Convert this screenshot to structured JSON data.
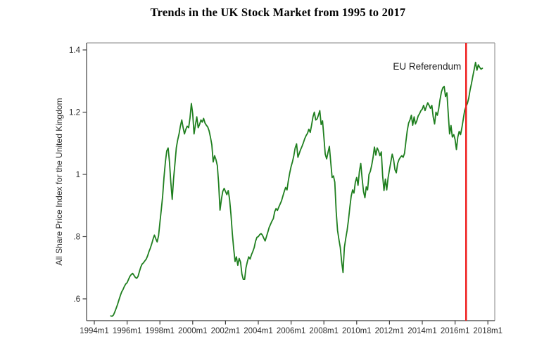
{
  "chart_data": {
    "type": "line",
    "title": "Trends in the UK Stock Market from 1995 to 2017",
    "ylabel": "All Share Price Index for the United Kingdom",
    "xlabel": "",
    "grid": false,
    "legend": "none",
    "xlim": [
      1993.5,
      2018.4
    ],
    "ylim": [
      0.53,
      1.42
    ],
    "x_ticks": [
      {
        "value": 1994,
        "label": "1994m1"
      },
      {
        "value": 1996,
        "label": "1996m1"
      },
      {
        "value": 1998,
        "label": "1998m1"
      },
      {
        "value": 2000,
        "label": "2000m1"
      },
      {
        "value": 2002,
        "label": "2002m1"
      },
      {
        "value": 2004,
        "label": "2004m1"
      },
      {
        "value": 2006,
        "label": "2006m1"
      },
      {
        "value": 2008,
        "label": "2008m1"
      },
      {
        "value": 2010,
        "label": "2010m1"
      },
      {
        "value": 2012,
        "label": "2012m1"
      },
      {
        "value": 2014,
        "label": "2014m1"
      },
      {
        "value": 2016,
        "label": "2016m1"
      },
      {
        "value": 2018,
        "label": "2018m1"
      }
    ],
    "y_ticks": [
      {
        "value": 0.6,
        "label": ".6"
      },
      {
        "value": 0.8,
        "label": ".8"
      },
      {
        "value": 1.0,
        "label": "1"
      },
      {
        "value": 1.2,
        "label": "1.2"
      },
      {
        "value": 1.4,
        "label": "1.4"
      }
    ],
    "series": [
      {
        "name": "All Share Price Index for the United Kingdom",
        "color": "#1f7f1f",
        "frequency": "monthly",
        "start": "1995m1",
        "end": "2017m9",
        "start_year": 1995,
        "start_month": 1,
        "values": [
          0.545,
          0.544,
          0.548,
          0.558,
          0.57,
          0.582,
          0.596,
          0.61,
          0.622,
          0.63,
          0.64,
          0.648,
          0.652,
          0.662,
          0.672,
          0.678,
          0.682,
          0.676,
          0.669,
          0.666,
          0.672,
          0.688,
          0.702,
          0.712,
          0.716,
          0.722,
          0.728,
          0.738,
          0.752,
          0.763,
          0.777,
          0.792,
          0.805,
          0.793,
          0.783,
          0.803,
          0.845,
          0.885,
          0.93,
          0.99,
          1.04,
          1.075,
          1.085,
          1.04,
          0.975,
          0.92,
          0.985,
          1.035,
          1.085,
          1.11,
          1.13,
          1.155,
          1.175,
          1.15,
          1.13,
          1.145,
          1.155,
          1.15,
          1.18,
          1.228,
          1.195,
          1.13,
          1.16,
          1.185,
          1.15,
          1.16,
          1.175,
          1.168,
          1.18,
          1.165,
          1.158,
          1.152,
          1.14,
          1.12,
          1.095,
          1.04,
          1.06,
          1.048,
          1.028,
          0.97,
          0.885,
          0.92,
          0.945,
          0.955,
          0.945,
          0.935,
          0.948,
          0.92,
          0.87,
          0.81,
          0.76,
          0.72,
          0.735,
          0.708,
          0.73,
          0.718,
          0.68,
          0.663,
          0.663,
          0.7,
          0.72,
          0.735,
          0.728,
          0.742,
          0.752,
          0.765,
          0.785,
          0.798,
          0.8,
          0.806,
          0.81,
          0.805,
          0.795,
          0.786,
          0.8,
          0.815,
          0.83,
          0.84,
          0.85,
          0.858,
          0.88,
          0.89,
          0.884,
          0.895,
          0.905,
          0.915,
          0.93,
          0.945,
          0.958,
          0.95,
          0.98,
          1.005,
          1.025,
          1.04,
          1.06,
          1.085,
          1.098,
          1.055,
          1.068,
          1.08,
          1.09,
          1.102,
          1.115,
          1.125,
          1.132,
          1.145,
          1.135,
          1.158,
          1.185,
          1.2,
          1.175,
          1.178,
          1.19,
          1.205,
          1.16,
          1.172,
          1.12,
          1.065,
          1.05,
          1.07,
          1.09,
          1.04,
          0.99,
          0.995,
          0.975,
          0.88,
          0.82,
          0.79,
          0.765,
          0.72,
          0.685,
          0.765,
          0.795,
          0.82,
          0.855,
          0.895,
          0.93,
          0.95,
          0.94,
          0.975,
          0.99,
          0.965,
          1.01,
          1.035,
          0.985,
          0.945,
          0.925,
          0.96,
          0.95,
          1.0,
          1.01,
          1.03,
          1.055,
          1.088,
          1.062,
          1.085,
          1.075,
          1.06,
          1.072,
          0.995,
          0.948,
          0.985,
          0.95,
          0.99,
          1.015,
          1.04,
          1.065,
          1.048,
          1.015,
          1.005,
          1.035,
          1.048,
          1.055,
          1.06,
          1.055,
          1.068,
          1.105,
          1.14,
          1.165,
          1.175,
          1.19,
          1.158,
          1.185,
          1.162,
          1.172,
          1.188,
          1.195,
          1.205,
          1.21,
          1.222,
          1.205,
          1.218,
          1.23,
          1.222,
          1.212,
          1.222,
          1.185,
          1.162,
          1.2,
          1.19,
          1.21,
          1.24,
          1.265,
          1.278,
          1.283,
          1.25,
          1.262,
          1.195,
          1.13,
          1.157,
          1.12,
          1.128,
          1.112,
          1.08,
          1.12,
          1.138,
          1.128,
          1.15,
          1.178,
          1.205,
          1.218,
          1.228,
          1.245,
          1.272,
          1.292,
          1.315,
          1.338,
          1.36,
          1.335,
          1.352,
          1.344,
          1.338,
          1.341
        ]
      }
    ],
    "annotations": [
      {
        "type": "vline",
        "label": "EU Referendum",
        "x": 2016.67,
        "color": "#ef1a1a"
      }
    ]
  }
}
